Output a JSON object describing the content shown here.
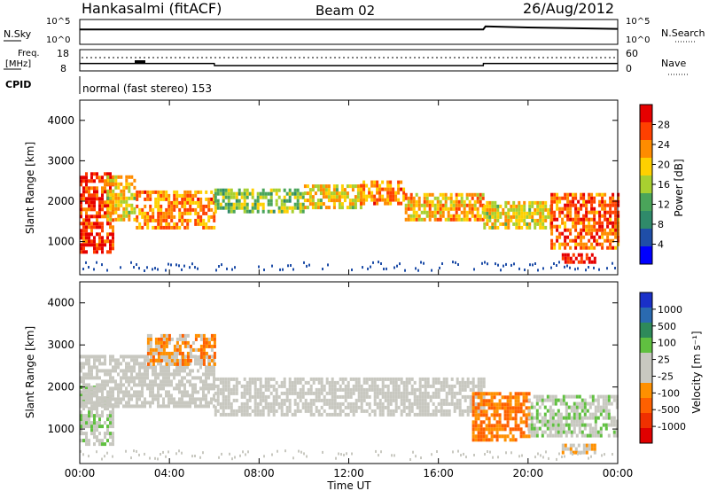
{
  "header": {
    "station": "Hankasalmi (fitACF)",
    "beam": "Beam 02",
    "date": "26/Aug/2012"
  },
  "left_labels": {
    "nsky": "N.Sky",
    "freq": "Freq.",
    "mhz": "[MHz]",
    "cpid": "CPID"
  },
  "right_labels": {
    "nsearch": "N.Search",
    "nave": "Nave"
  },
  "cpid_text": "normal (fast stereo) 153",
  "time_axis": {
    "label": "Time UT",
    "ticks": [
      "00:00",
      "04:00",
      "08:00",
      "12:00",
      "16:00",
      "20:00",
      "00:00"
    ]
  },
  "colors": {
    "power_scale": [
      "#0000ff",
      "#1f4ea8",
      "#2f8a6a",
      "#4aa55a",
      "#a8d030",
      "#ffd000",
      "#ff8c00",
      "#ff4000",
      "#e60000"
    ],
    "velocity_scale": [
      "#1a30c8",
      "#2a6ab0",
      "#2e8a5a",
      "#60c040",
      "#c8c8c0",
      "#c8c8c0",
      "#ff9000",
      "#ff6000",
      "#f03000",
      "#e00000"
    ]
  },
  "chart_data": [
    {
      "type": "line",
      "panel": "noise",
      "left_axis": {
        "ticks": [
          "10^0",
          "10^5"
        ]
      },
      "right_axis": {
        "ticks": [
          "10^0",
          "10^5"
        ]
      },
      "x": [
        0,
        4,
        8,
        12,
        16,
        18,
        18.1,
        20,
        24
      ],
      "series": [
        {
          "values": [
            3.0,
            3.0,
            3.0,
            3.0,
            3.0,
            3.0,
            3.6,
            3.4,
            3.1
          ]
        }
      ]
    },
    {
      "type": "line",
      "panel": "frequency",
      "left_axis": {
        "ticks": [
          "8",
          "18"
        ]
      },
      "right_axis": {
        "ticks": [
          "0",
          "60"
        ]
      },
      "x": [
        0,
        6,
        6.01,
        18,
        18.01,
        24
      ],
      "series": [
        {
          "values": [
            11.5,
            11.5,
            10.5,
            10.5,
            11.5,
            11.5
          ]
        }
      ]
    },
    {
      "type": "heatmap",
      "panel": "power",
      "title": "",
      "xlabel": "",
      "ylabel": "Slant Range [km]",
      "xlim": [
        0,
        24
      ],
      "ylim": [
        180,
        4500
      ],
      "y_ticks": [
        "1000",
        "2000",
        "3000",
        "4000"
      ],
      "colorbar": {
        "label": "Power [dB]",
        "ticks": [
          "4",
          "8",
          "12",
          "16",
          "20",
          "24",
          "28"
        ],
        "range": [
          0,
          30
        ]
      },
      "bands": [
        {
          "t": [
            0,
            1.5
          ],
          "r": [
            700,
            2700
          ],
          "v": 26
        },
        {
          "t": [
            1.2,
            2.5
          ],
          "r": [
            1500,
            2600
          ],
          "v": 18
        },
        {
          "t": [
            2.5,
            6
          ],
          "r": [
            1300,
            2200
          ],
          "v": 22
        },
        {
          "t": [
            6,
            10
          ],
          "r": [
            1700,
            2300
          ],
          "v": 14
        },
        {
          "t": [
            10,
            12.5
          ],
          "r": [
            1800,
            2400
          ],
          "v": 18
        },
        {
          "t": [
            12.5,
            14.5
          ],
          "r": [
            1900,
            2500
          ],
          "v": 22
        },
        {
          "t": [
            14.5,
            18
          ],
          "r": [
            1500,
            2200
          ],
          "v": 20
        },
        {
          "t": [
            18,
            21
          ],
          "r": [
            1300,
            2000
          ],
          "v": 18
        },
        {
          "t": [
            21,
            24
          ],
          "r": [
            800,
            2200
          ],
          "v": 24
        },
        {
          "t": [
            21.5,
            23
          ],
          "r": [
            450,
            650
          ],
          "v": 28
        }
      ]
    },
    {
      "type": "heatmap",
      "panel": "velocity",
      "title": "",
      "xlabel": "Time UT",
      "ylabel": "Slant Range [km]",
      "xlim": [
        0,
        24
      ],
      "ylim": [
        180,
        4500
      ],
      "y_ticks": [
        "1000",
        "2000",
        "3000",
        "4000"
      ],
      "colorbar": {
        "label": "Velocity [m s⁻¹]",
        "ticks": [
          "1000",
          "500",
          "100",
          "25",
          "-25",
          "-100",
          "-500",
          "-1000"
        ],
        "range": [
          -1000,
          1000
        ]
      },
      "bands": [
        {
          "t": [
            0,
            1.5
          ],
          "r": [
            600,
            2000
          ],
          "v": 100
        },
        {
          "t": [
            0,
            6
          ],
          "r": [
            1500,
            2700
          ],
          "v": 0
        },
        {
          "t": [
            3,
            6
          ],
          "r": [
            2500,
            3200
          ],
          "v": -300
        },
        {
          "t": [
            6,
            18
          ],
          "r": [
            1300,
            2200
          ],
          "v": 0
        },
        {
          "t": [
            17.5,
            20
          ],
          "r": [
            700,
            1800
          ],
          "v": -400
        },
        {
          "t": [
            20,
            24
          ],
          "r": [
            800,
            1800
          ],
          "v": 100
        },
        {
          "t": [
            21.5,
            23
          ],
          "r": [
            400,
            650
          ],
          "v": -200
        }
      ]
    }
  ]
}
